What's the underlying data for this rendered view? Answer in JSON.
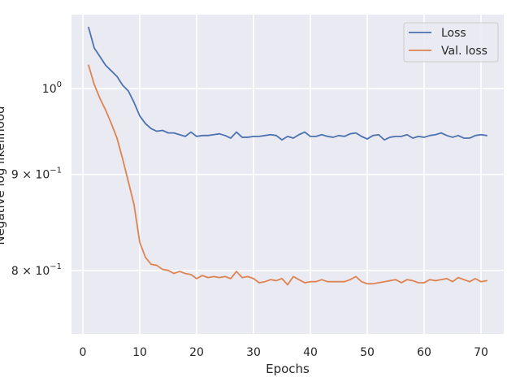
{
  "chart_data": {
    "type": "line",
    "xlabel": "Epochs",
    "ylabel": "Negative log likelihood",
    "yscale": "log",
    "xlim": [
      -2,
      74
    ],
    "ylim": [
      0.74,
      1.095
    ],
    "xticks": [
      0,
      10,
      20,
      30,
      40,
      50,
      60,
      70
    ],
    "xtick_labels": [
      "0",
      "10",
      "20",
      "30",
      "40",
      "50",
      "60",
      "70"
    ],
    "yticks": [
      1.0,
      0.9,
      0.8
    ],
    "ytick_labels": [
      {
        "base": "10",
        "exp": "0",
        "mult": ""
      },
      {
        "base": "10",
        "exp": "−1",
        "mult": "9 × "
      },
      {
        "base": "10",
        "exp": "−1",
        "mult": "8 × "
      }
    ],
    "grid": true,
    "background": "#eaeaf2",
    "legend_position": "top-right",
    "series": [
      {
        "name": "Loss",
        "color": "#4c72b0",
        "x": [
          1,
          2,
          3,
          4,
          5,
          6,
          7,
          8,
          9,
          10,
          11,
          12,
          13,
          14,
          15,
          16,
          17,
          18,
          19,
          20,
          21,
          22,
          23,
          24,
          25,
          26,
          27,
          28,
          29,
          30,
          31,
          32,
          33,
          34,
          35,
          36,
          37,
          38,
          39,
          40,
          41,
          42,
          43,
          44,
          45,
          46,
          47,
          48,
          49,
          50,
          51,
          52,
          53,
          54,
          55,
          56,
          57,
          58,
          59,
          60,
          61,
          62,
          63,
          64,
          65,
          66,
          67,
          68,
          69,
          70,
          71
        ],
        "values": [
          1.078,
          1.051,
          1.04,
          1.029,
          1.022,
          1.015,
          1.004,
          0.997,
          0.983,
          0.967,
          0.958,
          0.952,
          0.949,
          0.95,
          0.947,
          0.947,
          0.945,
          0.943,
          0.948,
          0.943,
          0.944,
          0.944,
          0.945,
          0.946,
          0.944,
          0.941,
          0.948,
          0.942,
          0.942,
          0.943,
          0.943,
          0.944,
          0.945,
          0.944,
          0.939,
          0.943,
          0.941,
          0.945,
          0.948,
          0.943,
          0.943,
          0.945,
          0.943,
          0.942,
          0.944,
          0.943,
          0.946,
          0.947,
          0.943,
          0.94,
          0.944,
          0.945,
          0.939,
          0.942,
          0.943,
          0.943,
          0.945,
          0.941,
          0.943,
          0.942,
          0.944,
          0.945,
          0.947,
          0.944,
          0.942,
          0.944,
          0.941,
          0.941,
          0.944,
          0.945,
          0.944
        ]
      },
      {
        "name": "Val. loss",
        "color": "#dd8452",
        "x": [
          1,
          2,
          3,
          4,
          5,
          6,
          7,
          8,
          9,
          10,
          11,
          12,
          13,
          14,
          15,
          16,
          17,
          18,
          19,
          20,
          21,
          22,
          23,
          24,
          25,
          26,
          27,
          28,
          29,
          30,
          31,
          32,
          33,
          34,
          35,
          36,
          37,
          38,
          39,
          40,
          41,
          42,
          43,
          44,
          45,
          46,
          47,
          48,
          49,
          50,
          51,
          52,
          53,
          54,
          55,
          56,
          57,
          58,
          59,
          60,
          61,
          62,
          63,
          64,
          65,
          66,
          67,
          68,
          69,
          70,
          71
        ],
        "values": [
          1.029,
          1.005,
          0.988,
          0.974,
          0.958,
          0.941,
          0.917,
          0.892,
          0.867,
          0.828,
          0.813,
          0.806,
          0.805,
          0.801,
          0.8,
          0.797,
          0.799,
          0.797,
          0.796,
          0.792,
          0.795,
          0.793,
          0.794,
          0.793,
          0.794,
          0.792,
          0.799,
          0.793,
          0.794,
          0.792,
          0.788,
          0.789,
          0.791,
          0.79,
          0.792,
          0.786,
          0.794,
          0.791,
          0.788,
          0.789,
          0.789,
          0.791,
          0.789,
          0.789,
          0.789,
          0.789,
          0.791,
          0.794,
          0.789,
          0.787,
          0.787,
          0.788,
          0.789,
          0.79,
          0.791,
          0.788,
          0.791,
          0.79,
          0.788,
          0.788,
          0.791,
          0.79,
          0.791,
          0.792,
          0.789,
          0.793,
          0.791,
          0.789,
          0.792,
          0.789,
          0.79
        ]
      }
    ]
  }
}
